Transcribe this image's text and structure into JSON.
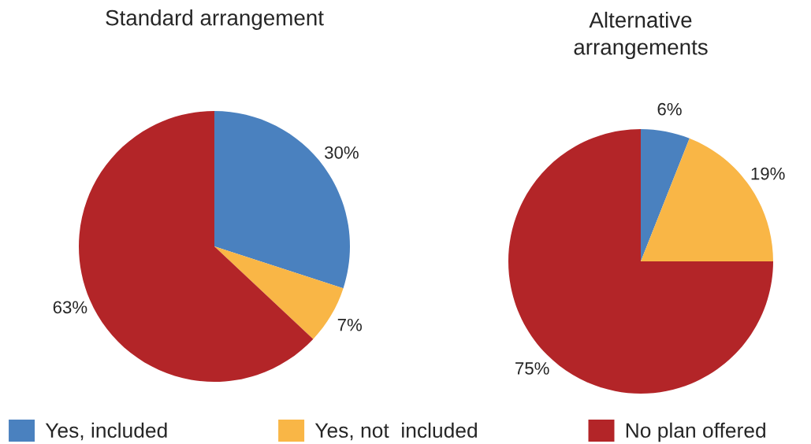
{
  "chart_data": [
    {
      "type": "pie",
      "title": "Standard arrangement",
      "categories": [
        "Yes, included",
        "Yes, not  included",
        "No plan offered"
      ],
      "values": [
        30,
        7,
        63
      ],
      "colors": [
        "#4a81bf",
        "#f9b646",
        "#b32528"
      ],
      "value_labels": [
        "30%",
        "7%",
        "63%"
      ],
      "legend": "bottom"
    },
    {
      "type": "pie",
      "title": "Alternative\narrangements",
      "categories": [
        null,
        null,
        null
      ],
      "values": [
        6,
        19,
        75
      ],
      "colors": [
        "#4a81bf",
        "#f9b646",
        "#b32528"
      ],
      "value_labels": [
        "6%",
        "19%",
        "75%"
      ]
    }
  ]
}
